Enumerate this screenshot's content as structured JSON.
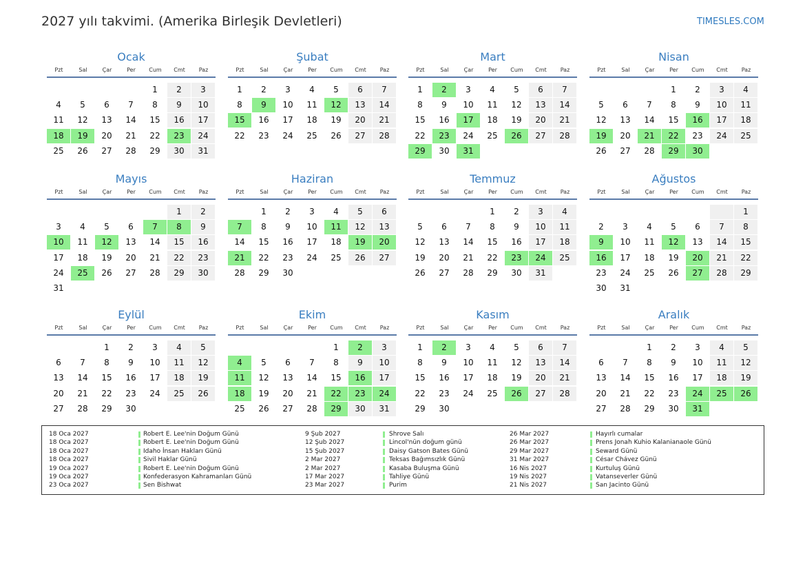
{
  "title": "2027 yılı takvimi. (Amerika Birleşik Devletleri)",
  "brand": "TIMESLES.COM",
  "weekdays": [
    "Pzt",
    "Sal",
    "Çar",
    "Per",
    "Cum",
    "Cmt",
    "Paz"
  ],
  "colors": {
    "holiday": "#90ee90",
    "weekend": "#f0f0f0",
    "accent": "#3a7ec0"
  },
  "months": [
    {
      "name": "Ocak",
      "offset": 4,
      "days": 31,
      "holidays": [
        18,
        19,
        23
      ]
    },
    {
      "name": "Şubat",
      "offset": 0,
      "days": 28,
      "holidays": [
        9,
        12,
        15
      ]
    },
    {
      "name": "Mart",
      "offset": 0,
      "days": 31,
      "holidays": [
        2,
        17,
        23,
        26,
        29,
        31
      ]
    },
    {
      "name": "Nisan",
      "offset": 3,
      "days": 30,
      "holidays": [
        16,
        19,
        21,
        22,
        29,
        30
      ]
    },
    {
      "name": "Mayıs",
      "offset": 5,
      "days": 31,
      "holidays": [
        7,
        8,
        10,
        12,
        25
      ]
    },
    {
      "name": "Haziran",
      "offset": 1,
      "days": 30,
      "holidays": [
        7,
        11,
        19,
        20,
        21
      ]
    },
    {
      "name": "Temmuz",
      "offset": 3,
      "days": 31,
      "holidays": [
        23,
        24
      ]
    },
    {
      "name": "Ağustos",
      "offset": 6,
      "days": 31,
      "holidays": [
        9,
        12,
        16,
        20,
        27
      ]
    },
    {
      "name": "Eylül",
      "offset": 2,
      "days": 30,
      "holidays": []
    },
    {
      "name": "Ekim",
      "offset": 4,
      "days": 31,
      "holidays": [
        2,
        4,
        11,
        16,
        18,
        22,
        23,
        24,
        29
      ]
    },
    {
      "name": "Kasım",
      "offset": 0,
      "days": 30,
      "holidays": [
        2,
        26
      ]
    },
    {
      "name": "Aralık",
      "offset": 2,
      "days": 31,
      "holidays": [
        24,
        25,
        26,
        31
      ]
    }
  ],
  "holidays_list": [
    [
      {
        "date": "18 Oca 2027",
        "name": "Robert E. Lee'nin Doğum Günü"
      },
      {
        "date": "18 Oca 2027",
        "name": "Robert E. Lee'nin Doğum Günü"
      },
      {
        "date": "18 Oca 2027",
        "name": "Idaho İnsan Hakları Günü"
      },
      {
        "date": "18 Oca 2027",
        "name": "Sivil Haklar Günü"
      },
      {
        "date": "19 Oca 2027",
        "name": "Robert E. Lee'nin Doğum Günü"
      },
      {
        "date": "19 Oca 2027",
        "name": "Konfederasyon Kahramanları Günü"
      },
      {
        "date": "23 Oca 2027",
        "name": "Sen Bishwat"
      }
    ],
    [
      {
        "date": "9 Şub 2027",
        "name": "Shrove Salı"
      },
      {
        "date": "12 Şub 2027",
        "name": "Lincol'nün doğum günü"
      },
      {
        "date": "15 Şub 2027",
        "name": "Daisy Gatson Bates Günü"
      },
      {
        "date": "2 Mar 2027",
        "name": "Teksas Bağımsızlık Günü"
      },
      {
        "date": "2 Mar 2027",
        "name": "Kasaba Buluşma Günü"
      },
      {
        "date": "17 Mar 2027",
        "name": "Tahliye Günü"
      },
      {
        "date": "23 Mar 2027",
        "name": "Purim"
      }
    ],
    [
      {
        "date": "26 Mar 2027",
        "name": "Hayırlı cumalar"
      },
      {
        "date": "26 Mar 2027",
        "name": "Prens Jonah Kuhio Kalanianaole Günü"
      },
      {
        "date": "29 Mar 2027",
        "name": "Seward Günü"
      },
      {
        "date": "31 Mar 2027",
        "name": "César Chávez Günü"
      },
      {
        "date": "16 Nis 2027",
        "name": "Kurtuluş Günü"
      },
      {
        "date": "19 Nis 2027",
        "name": "Vatanseverler Günü"
      },
      {
        "date": "21 Nis 2027",
        "name": "San Jacinto Günü"
      }
    ]
  ]
}
